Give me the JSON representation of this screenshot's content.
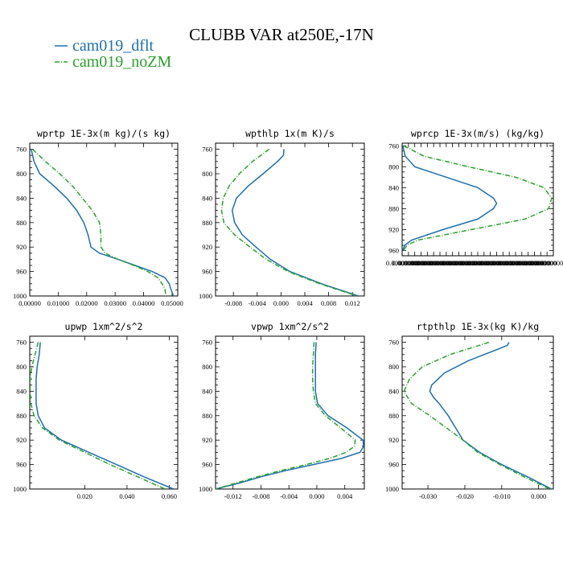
{
  "title": "CLUBB VAR at250E,-17N",
  "colors": {
    "dflt": "#1f6fad",
    "noZM": "#2ca02c"
  },
  "legend": [
    {
      "label": "cam019_dflt",
      "color": "#1f6fad",
      "dash": ""
    },
    {
      "label": "cam019_noZM",
      "color": "#2ca02c",
      "dash": "6,2,1,2"
    }
  ],
  "chart_data": [
    {
      "type": "line",
      "title": "wprtp  1E-3x(m kg)/(s kg)",
      "xlim": [
        0,
        0.052
      ],
      "ylim": [
        1000,
        750
      ],
      "xticks": [
        0,
        0.01,
        0.02,
        0.03,
        0.04,
        0.05
      ],
      "xticklabels": [
        "0.00000",
        "0.01000",
        "0.02000",
        "0.03000",
        "0.04000",
        "0.05000"
      ],
      "yticks": [
        760,
        800,
        840,
        880,
        920,
        960,
        1000
      ],
      "yticklabels": [
        "760",
        "800",
        "840",
        "880",
        "920",
        "960",
        "1000"
      ],
      "series": [
        {
          "name": "cam019_dflt",
          "y": [
            760,
            780,
            800,
            820,
            840,
            860,
            880,
            900,
            920,
            930,
            940,
            950,
            960,
            970,
            980,
            988,
            1000
          ],
          "x": [
            0.0005,
            0.0015,
            0.0035,
            0.0085,
            0.013,
            0.0165,
            0.019,
            0.0205,
            0.0215,
            0.0245,
            0.031,
            0.037,
            0.043,
            0.0475,
            0.049,
            0.0495,
            0.0505
          ]
        },
        {
          "name": "cam019_noZM",
          "y": [
            760,
            780,
            800,
            820,
            840,
            860,
            880,
            900,
            920,
            930,
            940,
            950,
            960,
            970,
            980,
            988,
            1000
          ],
          "x": [
            0.001,
            0.0055,
            0.0105,
            0.015,
            0.0185,
            0.022,
            0.0245,
            0.025,
            0.025,
            0.0265,
            0.031,
            0.0365,
            0.0415,
            0.045,
            0.0465,
            0.0475,
            0.0478
          ]
        }
      ]
    },
    {
      "type": "line",
      "title": "wpthlp  1x(m K)/s",
      "xlim": [
        -0.011,
        0.014
      ],
      "ylim": [
        1000,
        750
      ],
      "xticks": [
        -0.008,
        -0.004,
        0.0,
        0.004,
        0.008,
        0.012
      ],
      "xticklabels": [
        "-0.008",
        "-0.004",
        "0.000",
        "0.004",
        "0.008",
        "0.012"
      ],
      "yticks": [
        760,
        800,
        840,
        880,
        920,
        960,
        1000
      ],
      "yticklabels": [
        "760",
        "800",
        "840",
        "880",
        "920",
        "960",
        "1000"
      ],
      "series": [
        {
          "name": "cam019_dflt",
          "y": [
            760,
            770,
            780,
            800,
            820,
            840,
            860,
            880,
            900,
            920,
            940,
            960,
            980,
            1000
          ],
          "x": [
            0.0005,
            0.0004,
            -0.0006,
            -0.003,
            -0.0055,
            -0.0075,
            -0.0082,
            -0.0078,
            -0.0065,
            -0.0042,
            -0.0018,
            0.0015,
            0.0068,
            0.013
          ]
        },
        {
          "name": "cam019_noZM",
          "y": [
            760,
            780,
            800,
            820,
            840,
            860,
            880,
            900,
            920,
            940,
            960,
            980,
            1000
          ],
          "x": [
            -0.002,
            -0.0048,
            -0.007,
            -0.0087,
            -0.0097,
            -0.01,
            -0.0096,
            -0.0078,
            -0.0052,
            -0.0025,
            0.0012,
            0.0065,
            0.0128
          ]
        }
      ]
    },
    {
      "type": "line",
      "title": "wprcp  1E-3x(m/s) (kg/kg)",
      "xlim": [
        0,
        4.8e-07
      ],
      "ylim": [
        970,
        755
      ],
      "xticks": [
        0,
        2e-08,
        4e-08,
        6e-08,
        8e-08,
        1e-07,
        1.2e-07,
        1.4e-07,
        1.6e-07,
        1.8e-07,
        2e-07,
        2.2e-07,
        2.4e-07,
        2.6e-07,
        2.8e-07,
        3e-07,
        3.2e-07,
        3.4e-07,
        3.6e-07,
        3.8e-07,
        4e-07,
        4.2e-07,
        4.4e-07,
        4.6e-07
      ],
      "xticklabels": [
        "0.00000000",
        "0.00000000",
        "0.00000000",
        "0.00000000",
        "0.00000000",
        "0.00000000",
        "0.00000000",
        "0.00000000",
        "0.00000000",
        "0.00000000",
        "0.00000000",
        "0.00000000",
        "0.00000000",
        "0.00000000",
        "0.00000000",
        "0.00000000",
        "0.00000000",
        "0.00000000",
        "0.00000000",
        "0.00000000",
        "0.00000000",
        "0.00000000",
        "0.00000000",
        "0.00000000"
      ],
      "yticks": [
        760,
        800,
        840,
        880,
        920,
        960
      ],
      "yticklabels": [
        "760",
        "800",
        "840",
        "880",
        "920",
        "960"
      ],
      "series": [
        {
          "name": "cam019_dflt",
          "y": [
            760,
            780,
            800,
            820,
            840,
            860,
            870,
            880,
            900,
            920,
            940,
            950,
            960
          ],
          "x": [
            2e-09,
            1e-08,
            4e-08,
            1.4e-07,
            2.4e-07,
            2.9e-07,
            3e-07,
            2.9e-07,
            2.4e-07,
            1.3e-07,
            3e-08,
            8e-09,
            2e-09
          ]
        },
        {
          "name": "cam019_noZM",
          "y": [
            760,
            780,
            800,
            820,
            840,
            860,
            880,
            900,
            920,
            940,
            950,
            960
          ],
          "x": [
            5e-09,
            7e-08,
            2.1e-07,
            3.6e-07,
            4.5e-07,
            4.75e-07,
            4.65e-07,
            3.9e-07,
            2.2e-07,
            5e-08,
            1.5e-08,
            4e-09
          ]
        }
      ]
    },
    {
      "type": "line",
      "title": "upwp  1xm^2/s^2",
      "xlim": [
        -0.006,
        0.064
      ],
      "ylim": [
        1000,
        750
      ],
      "xticks": [
        0.02,
        0.04,
        0.06
      ],
      "xticklabels": [
        "0.020",
        "0.040",
        "0.060"
      ],
      "yticks": [
        760,
        800,
        840,
        880,
        920,
        960,
        1000
      ],
      "yticklabels": [
        "760",
        "800",
        "840",
        "880",
        "920",
        "960",
        "1000"
      ],
      "series": [
        {
          "name": "cam019_dflt",
          "y": [
            760,
            780,
            800,
            820,
            840,
            860,
            880,
            900,
            920,
            940,
            960,
            980,
            1000
          ],
          "x": [
            -0.001,
            -0.0015,
            -0.0025,
            -0.003,
            -0.003,
            -0.003,
            -0.002,
            0.001,
            0.009,
            0.022,
            0.035,
            0.048,
            0.062
          ]
        },
        {
          "name": "cam019_noZM",
          "y": [
            760,
            780,
            800,
            820,
            840,
            860,
            880,
            900,
            920,
            940,
            960,
            980,
            1000
          ],
          "x": [
            -0.002,
            -0.0035,
            -0.005,
            -0.0058,
            -0.0058,
            -0.0055,
            -0.004,
            0.0,
            0.008,
            0.02,
            0.032,
            0.045,
            0.058
          ]
        }
      ]
    },
    {
      "type": "line",
      "title": "vpwp  1xm^2/s^2",
      "xlim": [
        -0.0145,
        0.0068
      ],
      "ylim": [
        1000,
        750
      ],
      "xticks": [
        -0.012,
        -0.008,
        -0.004,
        0.0,
        0.004
      ],
      "xticklabels": [
        "-0.012",
        "-0.008",
        "-0.004",
        "0.000",
        "0.004"
      ],
      "yticks": [
        760,
        800,
        840,
        880,
        920,
        960,
        1000
      ],
      "yticklabels": [
        "760",
        "800",
        "840",
        "880",
        "920",
        "960",
        "1000"
      ],
      "series": [
        {
          "name": "cam019_dflt",
          "y": [
            760,
            780,
            800,
            820,
            840,
            860,
            880,
            900,
            920,
            930,
            940,
            950,
            960,
            970,
            980,
            990,
            1000
          ],
          "x": [
            -0.0001,
            -0.0002,
            -0.0002,
            -0.0002,
            -0.0002,
            0.0001,
            0.0016,
            0.0043,
            0.0066,
            0.0067,
            0.0062,
            0.0035,
            -0.0005,
            -0.0045,
            -0.008,
            -0.011,
            -0.0145
          ]
        },
        {
          "name": "cam019_noZM",
          "y": [
            760,
            780,
            800,
            820,
            840,
            860,
            880,
            900,
            920,
            930,
            940,
            950,
            960,
            970,
            980,
            990,
            1000
          ],
          "x": [
            -0.0004,
            -0.0005,
            -0.0006,
            -0.0006,
            -0.0005,
            -0.0002,
            0.0012,
            0.0034,
            0.0055,
            0.0054,
            0.0042,
            0.0018,
            -0.0015,
            -0.0052,
            -0.0085,
            -0.0115,
            -0.0145
          ]
        }
      ]
    },
    {
      "type": "line",
      "title": "rtpthlp  1E-3x(kg K)/kg",
      "xlim": [
        -0.037,
        0.004
      ],
      "ylim": [
        1000,
        750
      ],
      "xticks": [
        -0.03,
        -0.02,
        -0.01,
        0.0
      ],
      "xticklabels": [
        "-0.030",
        "-0.020",
        "-0.010",
        "0.000"
      ],
      "yticks": [
        760,
        800,
        840,
        880,
        920,
        960,
        1000
      ],
      "yticklabels": [
        "760",
        "800",
        "840",
        "880",
        "920",
        "960",
        "1000"
      ],
      "series": [
        {
          "name": "cam019_dflt",
          "y": [
            760,
            765,
            770,
            790,
            810,
            830,
            840,
            850,
            860,
            880,
            900,
            920,
            940,
            960,
            980,
            1000
          ],
          "x": [
            -0.008,
            -0.0085,
            -0.0105,
            -0.019,
            -0.0255,
            -0.029,
            -0.0295,
            -0.0285,
            -0.027,
            -0.0245,
            -0.0225,
            -0.0205,
            -0.016,
            -0.01,
            -0.003,
            0.0035
          ]
        },
        {
          "name": "cam019_noZM",
          "y": [
            760,
            780,
            800,
            820,
            840,
            860,
            880,
            900,
            920,
            940,
            960,
            980,
            1000
          ],
          "x": [
            -0.0135,
            -0.024,
            -0.0315,
            -0.035,
            -0.0365,
            -0.0345,
            -0.0295,
            -0.025,
            -0.0205,
            -0.0165,
            -0.0105,
            -0.004,
            0.003
          ]
        }
      ]
    }
  ]
}
